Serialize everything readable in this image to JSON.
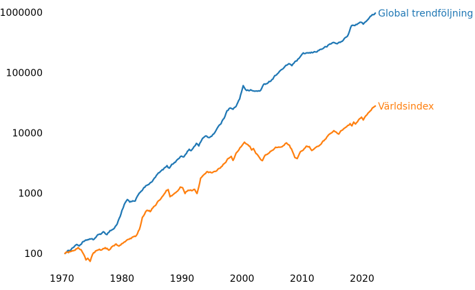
{
  "chart_data": {
    "type": "line",
    "title": "",
    "xlabel": "",
    "ylabel": "",
    "grid": false,
    "legend_position": "line-end-labels",
    "background": "#ffffff",
    "x_axis": {
      "ticks": [
        1970,
        1980,
        1990,
        2000,
        2010,
        2020
      ],
      "tick_labels": [
        "1970",
        "1980",
        "1990",
        "2000",
        "2010",
        "2020"
      ],
      "range": [
        1969.5,
        2024.5
      ]
    },
    "y_axis": {
      "scale": "log",
      "ticks": [
        100,
        1000,
        10000,
        100000,
        1000000
      ],
      "tick_labels": [
        "100",
        "1000",
        "10000",
        "100000",
        "1000000"
      ],
      "range": [
        63,
        1300000
      ]
    },
    "series": [
      {
        "name": "Global trendföljning",
        "color": "#1f77b4",
        "points": [
          [
            1970.5,
            100
          ],
          [
            1971.2,
            112
          ],
          [
            1971.8,
            125
          ],
          [
            1972.3,
            140
          ],
          [
            1972.9,
            135
          ],
          [
            1973.4,
            152
          ],
          [
            1974.0,
            162
          ],
          [
            1974.6,
            175
          ],
          [
            1975.2,
            168
          ],
          [
            1975.8,
            195
          ],
          [
            1976.3,
            210
          ],
          [
            1976.9,
            222
          ],
          [
            1977.5,
            210
          ],
          [
            1978.0,
            240
          ],
          [
            1978.6,
            255
          ],
          [
            1979.2,
            310
          ],
          [
            1979.7,
            420
          ],
          [
            1980.0,
            520
          ],
          [
            1980.4,
            650
          ],
          [
            1980.9,
            780
          ],
          [
            1981.3,
            700
          ],
          [
            1981.8,
            740
          ],
          [
            1982.2,
            720
          ],
          [
            1982.7,
            950
          ],
          [
            1983.2,
            1100
          ],
          [
            1983.8,
            1250
          ],
          [
            1984.3,
            1400
          ],
          [
            1984.9,
            1500
          ],
          [
            1985.4,
            1750
          ],
          [
            1985.9,
            2050
          ],
          [
            1986.4,
            2250
          ],
          [
            1987.0,
            2550
          ],
          [
            1987.5,
            2800
          ],
          [
            1987.9,
            2570
          ],
          [
            1988.3,
            3060
          ],
          [
            1988.9,
            3300
          ],
          [
            1989.4,
            3800
          ],
          [
            1989.9,
            4100
          ],
          [
            1990.3,
            3980
          ],
          [
            1990.9,
            4900
          ],
          [
            1991.2,
            5320
          ],
          [
            1991.5,
            4950
          ],
          [
            1992.0,
            5940
          ],
          [
            1992.4,
            6700
          ],
          [
            1992.8,
            6200
          ],
          [
            1993.4,
            8200
          ],
          [
            1994.1,
            8800
          ],
          [
            1994.6,
            8400
          ],
          [
            1995.3,
            9800
          ],
          [
            1996.0,
            12500
          ],
          [
            1996.5,
            14500
          ],
          [
            1997.0,
            17500
          ],
          [
            1997.5,
            24000
          ],
          [
            1998.0,
            26000
          ],
          [
            1998.5,
            24500
          ],
          [
            1999.0,
            28000
          ],
          [
            1999.6,
            36000
          ],
          [
            2000.2,
            62000
          ],
          [
            2000.6,
            53000
          ],
          [
            2001.1,
            50500
          ],
          [
            2001.6,
            51500
          ],
          [
            2002.1,
            48500
          ],
          [
            2002.6,
            49500
          ],
          [
            2003.1,
            51000
          ],
          [
            2003.6,
            62000
          ],
          [
            2004.2,
            68000
          ],
          [
            2004.8,
            74000
          ],
          [
            2005.3,
            84000
          ],
          [
            2005.9,
            98000
          ],
          [
            2006.4,
            108000
          ],
          [
            2006.9,
            118000
          ],
          [
            2007.3,
            128000
          ],
          [
            2007.8,
            142000
          ],
          [
            2008.3,
            133000
          ],
          [
            2008.8,
            148000
          ],
          [
            2009.3,
            165000
          ],
          [
            2009.8,
            185000
          ],
          [
            2010.2,
            205000
          ],
          [
            2010.7,
            212000
          ],
          [
            2011.2,
            210000
          ],
          [
            2011.7,
            215000
          ],
          [
            2012.2,
            222000
          ],
          [
            2012.8,
            235000
          ],
          [
            2013.4,
            252000
          ],
          [
            2014.0,
            268000
          ],
          [
            2014.6,
            292000
          ],
          [
            2015.2,
            318000
          ],
          [
            2015.7,
            305000
          ],
          [
            2016.2,
            315000
          ],
          [
            2016.7,
            330000
          ],
          [
            2017.2,
            380000
          ],
          [
            2017.7,
            430000
          ],
          [
            2018.1,
            560000
          ],
          [
            2018.4,
            620000
          ],
          [
            2018.8,
            600000
          ],
          [
            2019.3,
            650000
          ],
          [
            2019.8,
            680000
          ],
          [
            2020.2,
            650000
          ],
          [
            2020.7,
            730000
          ],
          [
            2021.2,
            810000
          ],
          [
            2021.7,
            900000
          ],
          [
            2022.0,
            950000
          ],
          [
            2022.2,
            975000
          ]
        ]
      },
      {
        "name": "Världsindex",
        "color": "#ff7f0e",
        "points": [
          [
            1970.5,
            100
          ],
          [
            1971.1,
            105
          ],
          [
            1971.7,
            112
          ],
          [
            1972.2,
            118
          ],
          [
            1972.7,
            123
          ],
          [
            1973.2,
            114
          ],
          [
            1973.6,
            95
          ],
          [
            1974.0,
            79
          ],
          [
            1974.3,
            86
          ],
          [
            1974.7,
            77
          ],
          [
            1975.1,
            95
          ],
          [
            1975.6,
            108
          ],
          [
            1976.1,
            117
          ],
          [
            1976.7,
            114
          ],
          [
            1977.2,
            123
          ],
          [
            1977.8,
            117
          ],
          [
            1978.4,
            130
          ],
          [
            1978.9,
            141
          ],
          [
            1979.5,
            135
          ],
          [
            1980.1,
            148
          ],
          [
            1980.7,
            160
          ],
          [
            1981.2,
            169
          ],
          [
            1981.8,
            183
          ],
          [
            1982.4,
            195
          ],
          [
            1982.9,
            250
          ],
          [
            1983.4,
            390
          ],
          [
            1984.1,
            520
          ],
          [
            1984.7,
            500
          ],
          [
            1985.3,
            600
          ],
          [
            1985.9,
            700
          ],
          [
            1986.4,
            800
          ],
          [
            1987.0,
            950
          ],
          [
            1987.4,
            1100
          ],
          [
            1987.7,
            1160
          ],
          [
            1988.0,
            850
          ],
          [
            1988.6,
            960
          ],
          [
            1989.1,
            1070
          ],
          [
            1989.7,
            1250
          ],
          [
            1990.1,
            1200
          ],
          [
            1990.5,
            980
          ],
          [
            1991.0,
            1150
          ],
          [
            1991.6,
            1090
          ],
          [
            1992.1,
            1150
          ],
          [
            1992.5,
            1000
          ],
          [
            1992.8,
            1300
          ],
          [
            1993.1,
            1750
          ],
          [
            1993.6,
            2000
          ],
          [
            1994.1,
            2300
          ],
          [
            1994.7,
            2200
          ],
          [
            1995.2,
            2250
          ],
          [
            1995.8,
            2400
          ],
          [
            1996.4,
            2700
          ],
          [
            1997.0,
            3100
          ],
          [
            1997.6,
            3700
          ],
          [
            1998.2,
            4100
          ],
          [
            1998.5,
            3600
          ],
          [
            1999.0,
            4600
          ],
          [
            1999.5,
            5300
          ],
          [
            2000.0,
            6200
          ],
          [
            2000.4,
            6900
          ],
          [
            2000.8,
            6400
          ],
          [
            2001.3,
            5900
          ],
          [
            2001.6,
            5200
          ],
          [
            2001.9,
            5600
          ],
          [
            2002.3,
            4700
          ],
          [
            2002.7,
            4100
          ],
          [
            2003.1,
            3650
          ],
          [
            2003.4,
            3550
          ],
          [
            2003.9,
            4300
          ],
          [
            2004.4,
            4650
          ],
          [
            2005.0,
            5100
          ],
          [
            2005.6,
            5700
          ],
          [
            2006.1,
            6000
          ],
          [
            2006.5,
            5750
          ],
          [
            2007.0,
            6400
          ],
          [
            2007.4,
            6800
          ],
          [
            2007.9,
            6200
          ],
          [
            2008.4,
            5000
          ],
          [
            2008.8,
            4000
          ],
          [
            2009.2,
            3900
          ],
          [
            2009.7,
            4900
          ],
          [
            2010.2,
            5400
          ],
          [
            2010.7,
            5900
          ],
          [
            2011.2,
            6000
          ],
          [
            2011.6,
            5300
          ],
          [
            2012.1,
            5700
          ],
          [
            2012.7,
            6100
          ],
          [
            2013.2,
            6800
          ],
          [
            2013.8,
            7800
          ],
          [
            2014.3,
            8800
          ],
          [
            2014.9,
            10200
          ],
          [
            2015.3,
            11300
          ],
          [
            2015.7,
            10300
          ],
          [
            2016.1,
            9600
          ],
          [
            2016.6,
            11000
          ],
          [
            2017.1,
            12300
          ],
          [
            2017.6,
            13300
          ],
          [
            2018.0,
            14200
          ],
          [
            2018.3,
            13100
          ],
          [
            2018.6,
            15200
          ],
          [
            2018.9,
            14200
          ],
          [
            2019.4,
            16300
          ],
          [
            2019.9,
            18000
          ],
          [
            2020.2,
            16200
          ],
          [
            2020.6,
            19000
          ],
          [
            2021.0,
            21500
          ],
          [
            2021.5,
            24500
          ],
          [
            2021.9,
            27200
          ],
          [
            2022.2,
            28000
          ]
        ]
      }
    ]
  }
}
